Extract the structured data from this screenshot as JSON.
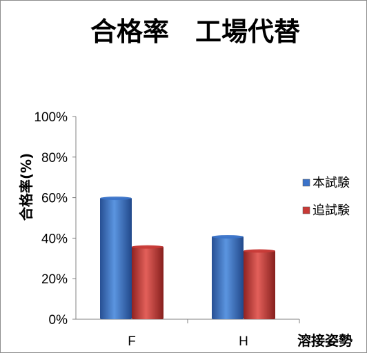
{
  "chart_data": {
    "type": "bar",
    "title": "合格率　工場代替",
    "categories": [
      "F",
      "H"
    ],
    "series": [
      {
        "name": "本試験",
        "values": [
          60,
          41
        ],
        "color": "#3b73c9"
      },
      {
        "name": "追試験",
        "values": [
          36,
          34
        ],
        "color": "#c83a36"
      }
    ],
    "ylabel": "合格率(%)",
    "xlabel": "溶接姿勢",
    "ylim": [
      0,
      100
    ],
    "yticks": [
      "0%",
      "20%",
      "40%",
      "60%",
      "80%",
      "100%"
    ],
    "grid": false,
    "legend_position": "right"
  }
}
